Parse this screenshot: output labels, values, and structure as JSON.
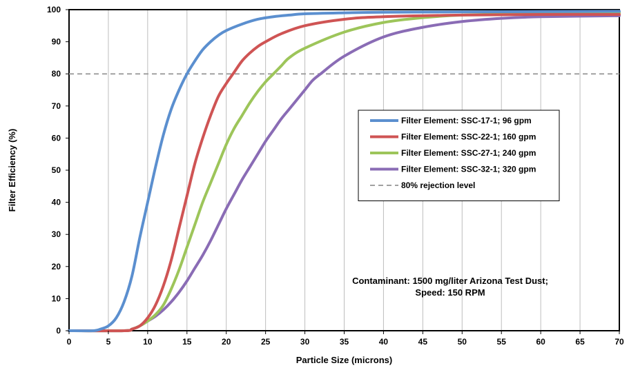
{
  "chart_data": {
    "type": "line",
    "title": "",
    "xlabel": "Particle Size (microns)",
    "ylabel": "Filter Efficiency (%)",
    "xlim": [
      0,
      70
    ],
    "ylim": [
      0,
      100
    ],
    "xticks": [
      "0",
      "5",
      "10",
      "15",
      "20",
      "25",
      "30",
      "35",
      "40",
      "45",
      "50",
      "55",
      "60",
      "65",
      "70"
    ],
    "yticks": [
      "0",
      "10",
      "20",
      "30",
      "40",
      "50",
      "60",
      "70",
      "80",
      "90",
      "100"
    ],
    "grid": "vertical",
    "legend_position": "right-center",
    "series": [
      {
        "name": "Filter Element: SSC-17-1; 96 gpm",
        "color": "#5b8fcf",
        "x": [
          0,
          3,
          4,
          5,
          6,
          7,
          8,
          9,
          10,
          11,
          12,
          13,
          14,
          15,
          16,
          17,
          18,
          19,
          20,
          22,
          24,
          26,
          28,
          30,
          35,
          40,
          50,
          60,
          70
        ],
        "y": [
          0,
          0,
          0.5,
          1.5,
          4,
          9,
          17,
          29,
          40,
          51,
          61,
          69,
          75,
          80,
          84,
          87.5,
          90,
          92,
          93.5,
          95.5,
          97,
          97.8,
          98.3,
          98.7,
          99,
          99.2,
          99.3,
          99.4,
          99.5
        ]
      },
      {
        "name": "Filter Element: SSC-22-1; 160 gpm",
        "color": "#cf5454",
        "x": [
          0,
          7,
          8,
          9,
          10,
          11,
          12,
          13,
          14,
          15,
          16,
          17,
          18,
          19,
          20,
          21,
          22,
          23,
          24,
          25,
          27,
          30,
          35,
          40,
          50,
          60,
          70
        ],
        "y": [
          0,
          0,
          0.5,
          1.5,
          4,
          8,
          14,
          22,
          32,
          42,
          52,
          60,
          67,
          73,
          77,
          80.5,
          84,
          86.5,
          88.5,
          90,
          92.5,
          95,
          97,
          97.8,
          98.3,
          98.5,
          98.5
        ]
      },
      {
        "name": "Filter Element: SSC-27-1; 240 gpm",
        "color": "#9dc55a",
        "x": [
          0,
          7,
          8,
          9,
          10,
          11,
          12,
          13,
          14,
          15,
          16,
          17,
          18,
          19,
          20,
          21,
          22,
          23,
          24,
          25,
          26,
          27,
          28,
          30,
          35,
          40,
          45,
          50,
          60,
          70
        ],
        "y": [
          0,
          0,
          0.5,
          1.5,
          3,
          5,
          8,
          13,
          19,
          26,
          33,
          40,
          46,
          52,
          58,
          63,
          67,
          71,
          74.5,
          77.5,
          80,
          82.5,
          85,
          88,
          93,
          96,
          97.5,
          98.3,
          98.8,
          99
        ]
      },
      {
        "name": "Filter Element: SSC-32-1; 320 gpm",
        "color": "#8a6cb5",
        "x": [
          0,
          7,
          8,
          9,
          10,
          11,
          12,
          13,
          14,
          15,
          16,
          17,
          18,
          19,
          20,
          21,
          22,
          23,
          24,
          25,
          26,
          27,
          28,
          29,
          30,
          31,
          32,
          35,
          40,
          45,
          50,
          55,
          60,
          70
        ],
        "y": [
          0,
          0,
          0.5,
          1.5,
          3,
          4.5,
          6.5,
          9,
          12,
          15.5,
          19.5,
          23.5,
          28,
          33,
          38,
          42.5,
          47,
          51,
          55,
          59,
          62.5,
          66,
          69,
          72,
          75,
          78,
          80,
          85.5,
          91.5,
          94.5,
          96.3,
          97.3,
          97.8,
          98.1
        ]
      },
      {
        "name": "80% rejection level",
        "color": "#a0a0a0",
        "dashed": true,
        "x": [
          0,
          70
        ],
        "y": [
          80,
          80
        ]
      }
    ],
    "annotation": {
      "line1": "Contaminant: 1500 mg/liter Arizona Test Dust;",
      "line2": "Speed: 150 RPM"
    }
  }
}
